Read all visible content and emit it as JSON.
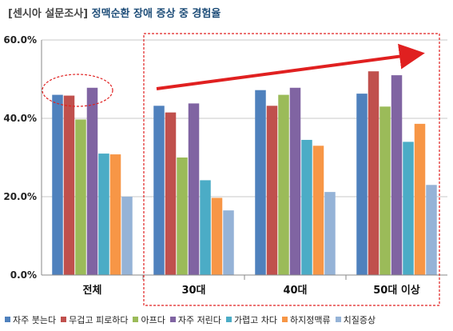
{
  "title": {
    "prefix": "[센시아 설문조사]",
    "main": "정맥순환 장애 증상 중 경험율"
  },
  "chart_data": {
    "type": "bar",
    "title": "[센시아 설문조사] 정맥순환 장애 증상 중 경험율",
    "xlabel": "",
    "ylabel": "",
    "ylim": [
      0,
      60
    ],
    "yticks": [
      "0.0%",
      "20.0%",
      "40.0%",
      "60.0%"
    ],
    "categories": [
      "전체",
      "30대",
      "40대",
      "50대 이상"
    ],
    "grid": true,
    "legend_position": "bottom",
    "series": [
      {
        "name": "자주 붓는다",
        "color": "#4f81bd",
        "values": [
          46.0,
          43.2,
          47.2,
          46.3
        ]
      },
      {
        "name": "무겁고 피로하다",
        "color": "#c0504d",
        "values": [
          45.8,
          41.5,
          43.2,
          52.0
        ]
      },
      {
        "name": "아프다",
        "color": "#9bbb59",
        "values": [
          39.7,
          30.0,
          46.0,
          43.0
        ]
      },
      {
        "name": "자주 저린다",
        "color": "#8064a2",
        "values": [
          47.8,
          43.8,
          47.8,
          51.0
        ]
      },
      {
        "name": "가렵고 차다",
        "color": "#4bacc6",
        "values": [
          31.0,
          24.2,
          34.5,
          34.0
        ]
      },
      {
        "name": "하지정맥류",
        "color": "#f79646",
        "values": [
          30.8,
          19.7,
          33.0,
          38.6
        ]
      },
      {
        "name": "치질증상",
        "color": "#95b3d7",
        "values": [
          20.0,
          16.5,
          21.2,
          23.0
        ]
      }
    ]
  },
  "annotations": {
    "highlight_color": "#e02020"
  }
}
